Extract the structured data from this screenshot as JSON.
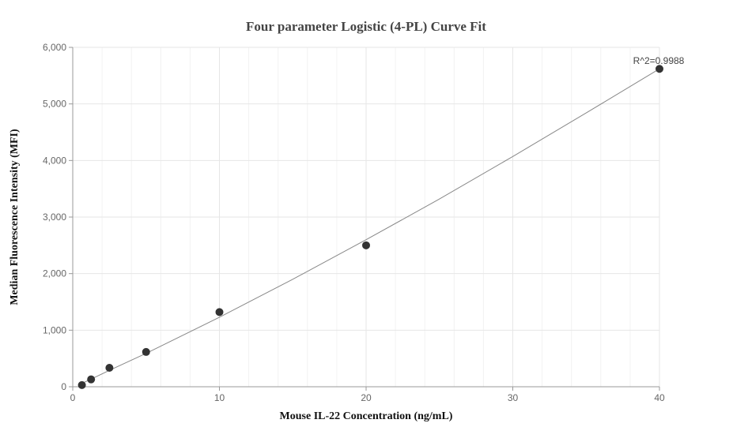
{
  "chart_data": {
    "type": "scatter",
    "title": "Four parameter Logistic (4-PL) Curve Fit",
    "xlabel": "Mouse IL-22 Concentration (ng/mL)",
    "ylabel": "Median Fluorescence Intensity (MFI)",
    "xlim": [
      0,
      40
    ],
    "ylim": [
      0,
      6000
    ],
    "x_ticks": [
      0,
      10,
      20,
      30,
      40
    ],
    "x_tick_labels": [
      "0",
      "10",
      "20",
      "30",
      "40"
    ],
    "y_ticks": [
      0,
      1000,
      2000,
      3000,
      4000,
      5000,
      6000
    ],
    "y_tick_labels": [
      "0",
      "1,000",
      "2,000",
      "3,000",
      "4,000",
      "5,000",
      "6,000"
    ],
    "grid": true,
    "series": [
      {
        "points": [
          {
            "x": 0.625,
            "y": 30
          },
          {
            "x": 1.25,
            "y": 130
          },
          {
            "x": 2.5,
            "y": 335
          },
          {
            "x": 5,
            "y": 615
          },
          {
            "x": 10,
            "y": 1320
          },
          {
            "x": 20,
            "y": 2500
          },
          {
            "x": 40,
            "y": 5620
          }
        ],
        "color": "#333333"
      }
    ],
    "fit_curve": {
      "x": [
        0.625,
        1.25,
        2.5,
        5,
        10,
        15,
        20,
        25,
        30,
        35,
        40
      ],
      "y": [
        60,
        135,
        290,
        590,
        1230,
        1900,
        2600,
        3320,
        4070,
        4840,
        5620
      ],
      "color": "#888888"
    },
    "annotation": {
      "text": "R^2=0.9988",
      "x": 40,
      "y": 5620
    }
  }
}
